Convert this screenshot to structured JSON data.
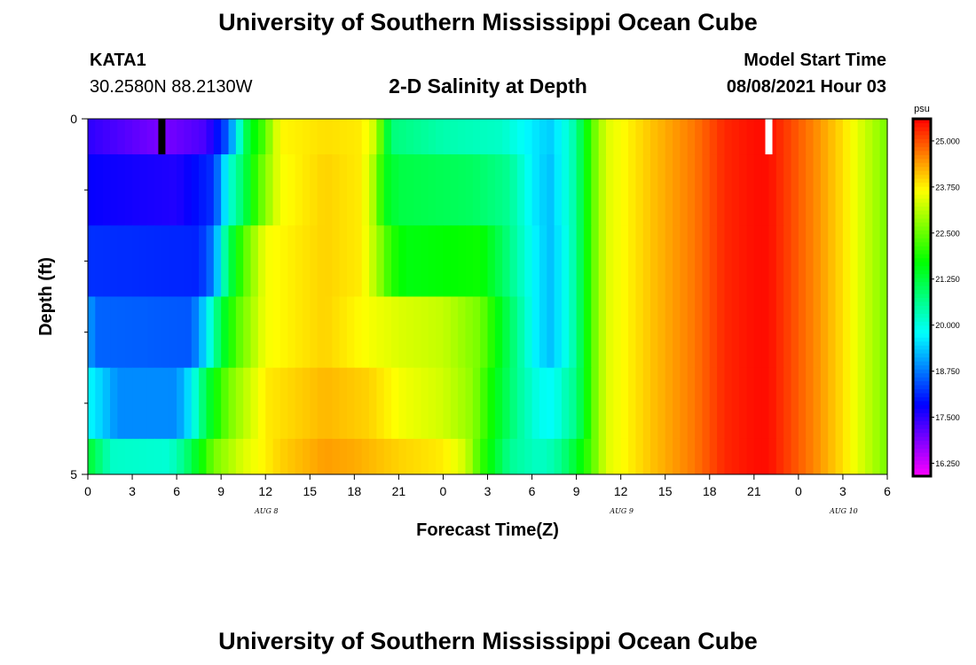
{
  "page": {
    "title_top": "University of Southern Mississippi Ocean Cube",
    "title_bottom": "University of Southern Mississippi Ocean Cube",
    "station_id": "KATA1",
    "station_coords": "30.2580N  88.2130W",
    "subtitle": "2-D Salinity at Depth",
    "model_start_label": "Model Start Time",
    "model_start_value": "08/08/2021 Hour 03"
  },
  "chart_data": {
    "type": "heatmap",
    "title": "2-D Salinity at Depth",
    "xlabel": "Forecast Time(Z)",
    "ylabel": "Depth (ft)",
    "x_hours_from_aug8_00z": [
      0,
      54
    ],
    "x_tick_labels": [
      "0",
      "3",
      "6",
      "9",
      "12",
      "15",
      "18",
      "21",
      "0",
      "3",
      "6",
      "9",
      "12",
      "15",
      "18",
      "21",
      "0",
      "3",
      "6"
    ],
    "day_labels": [
      {
        "label": "AUG 8",
        "hour": 12
      },
      {
        "label": "AUG 9",
        "hour": 36
      },
      {
        "label": "AUG 10",
        "hour": 51
      }
    ],
    "y_range_ft": [
      0,
      5
    ],
    "y_tick_labels": [
      "0",
      "5"
    ],
    "y_minor_ticks_ft": [
      1,
      2,
      3,
      4
    ],
    "colorbar": {
      "unit": "psu",
      "range": [
        15.9,
        25.6
      ],
      "tick_values": [
        16.25,
        17.5,
        18.75,
        20.0,
        21.25,
        22.5,
        23.75,
        25.0
      ],
      "tick_labels": [
        "16.250",
        "17.500",
        "18.750",
        "20.000",
        "21.250",
        "22.500",
        "23.750",
        "25.000"
      ]
    },
    "markers": [
      {
        "color": "#000000",
        "hour": 5.0,
        "depth_ft_top": 0,
        "depth_ft_bottom": 0.5
      },
      {
        "color": "#ffffff",
        "hour": 46.0,
        "depth_ft_top": 0,
        "depth_ft_bottom": 0.5
      }
    ],
    "rows": [
      {
        "depth_ft": [
          0.0,
          0.5
        ],
        "knots": [
          [
            0,
            17.5
          ],
          [
            5,
            16.9
          ],
          [
            8,
            17.3
          ],
          [
            9.5,
            18.6
          ],
          [
            10.8,
            21.3
          ],
          [
            11.8,
            22.2
          ],
          [
            13,
            23.7
          ],
          [
            16,
            23.9
          ],
          [
            18.5,
            23.8
          ],
          [
            19.5,
            23.2
          ],
          [
            20,
            21.8
          ],
          [
            20.5,
            20.8
          ],
          [
            24,
            20.4
          ],
          [
            28,
            20.2
          ],
          [
            30.2,
            19.6
          ],
          [
            31.2,
            19.4
          ],
          [
            32,
            19.8
          ],
          [
            32.8,
            20.4
          ],
          [
            33.5,
            21.4
          ],
          [
            34,
            22.3
          ],
          [
            35,
            23.4
          ],
          [
            38,
            24.1
          ],
          [
            41,
            24.7
          ],
          [
            43,
            25.3
          ],
          [
            45,
            25.5
          ],
          [
            46,
            25.5
          ],
          [
            47,
            25.2
          ],
          [
            49,
            24.6
          ],
          [
            51,
            23.9
          ],
          [
            54,
            22.6
          ]
        ]
      },
      {
        "depth_ft": [
          0.5,
          1.5
        ],
        "knots": [
          [
            0,
            17.8
          ],
          [
            6,
            17.6
          ],
          [
            8.5,
            18.2
          ],
          [
            9.5,
            20.0
          ],
          [
            10.5,
            21.0
          ],
          [
            11.5,
            22.3
          ],
          [
            13,
            23.6
          ],
          [
            16,
            24.0
          ],
          [
            18.5,
            23.8
          ],
          [
            19.5,
            22.8
          ],
          [
            20,
            21.6
          ],
          [
            21,
            21.2
          ],
          [
            26,
            21.0
          ],
          [
            28.5,
            20.6
          ],
          [
            30.2,
            19.6
          ],
          [
            31.2,
            19.3
          ],
          [
            32,
            19.8
          ],
          [
            32.8,
            20.4
          ],
          [
            33.5,
            21.4
          ],
          [
            34,
            22.3
          ],
          [
            35,
            23.4
          ],
          [
            38,
            24.1
          ],
          [
            41,
            24.7
          ],
          [
            43,
            25.3
          ],
          [
            45,
            25.5
          ],
          [
            46,
            25.5
          ],
          [
            47,
            25.2
          ],
          [
            49,
            24.6
          ],
          [
            51,
            23.9
          ],
          [
            54,
            22.6
          ]
        ]
      },
      {
        "depth_ft": [
          1.5,
          2.5
        ],
        "knots": [
          [
            0,
            18.2
          ],
          [
            7.5,
            18.1
          ],
          [
            8.5,
            18.8
          ],
          [
            9.5,
            21.0
          ],
          [
            10.5,
            22.3
          ],
          [
            12,
            23.6
          ],
          [
            16,
            24.0
          ],
          [
            18.5,
            23.8
          ],
          [
            19.5,
            23.0
          ],
          [
            20.5,
            22.0
          ],
          [
            21.5,
            21.6
          ],
          [
            26.5,
            21.8
          ],
          [
            28,
            21.0
          ],
          [
            30.2,
            19.7
          ],
          [
            31.2,
            19.3
          ],
          [
            32,
            19.7
          ],
          [
            32.8,
            20.4
          ],
          [
            33.5,
            21.4
          ],
          [
            34,
            22.3
          ],
          [
            35,
            23.4
          ],
          [
            38,
            24.1
          ],
          [
            41,
            24.7
          ],
          [
            43,
            25.3
          ],
          [
            45,
            25.5
          ],
          [
            46,
            25.5
          ],
          [
            47,
            25.2
          ],
          [
            49,
            24.6
          ],
          [
            51,
            23.9
          ],
          [
            54,
            22.6
          ]
        ]
      },
      {
        "depth_ft": [
          2.5,
          3.5
        ],
        "knots": [
          [
            0,
            19.2
          ],
          [
            0.5,
            18.6
          ],
          [
            7,
            18.5
          ],
          [
            8,
            19.6
          ],
          [
            9,
            21.2
          ],
          [
            10,
            22.3
          ],
          [
            12,
            23.6
          ],
          [
            16,
            24.0
          ],
          [
            19,
            23.6
          ],
          [
            21,
            23.4
          ],
          [
            24,
            23.2
          ],
          [
            26.5,
            22.6
          ],
          [
            28,
            21.4
          ],
          [
            30.2,
            19.7
          ],
          [
            31.2,
            19.3
          ],
          [
            32,
            19.7
          ],
          [
            32.8,
            20.4
          ],
          [
            33.5,
            21.4
          ],
          [
            34,
            22.3
          ],
          [
            35,
            23.4
          ],
          [
            38,
            24.1
          ],
          [
            41,
            24.7
          ],
          [
            43,
            25.3
          ],
          [
            45,
            25.5
          ],
          [
            46,
            25.5
          ],
          [
            47,
            25.2
          ],
          [
            49,
            24.6
          ],
          [
            51,
            23.9
          ],
          [
            54,
            22.6
          ]
        ]
      },
      {
        "depth_ft": [
          3.5,
          4.5
        ],
        "knots": [
          [
            0,
            19.8
          ],
          [
            1,
            19.4
          ],
          [
            2,
            18.9
          ],
          [
            6,
            18.9
          ],
          [
            7,
            19.7
          ],
          [
            8,
            21.2
          ],
          [
            9.5,
            22.6
          ],
          [
            12,
            23.8
          ],
          [
            16,
            24.2
          ],
          [
            19,
            24.0
          ],
          [
            21,
            23.6
          ],
          [
            24,
            23.3
          ],
          [
            26,
            22.8
          ],
          [
            27.5,
            21.6
          ],
          [
            29,
            20.6
          ],
          [
            30.5,
            19.9
          ],
          [
            31.5,
            19.8
          ],
          [
            32,
            20.2
          ],
          [
            32.8,
            20.6
          ],
          [
            33.5,
            21.4
          ],
          [
            34,
            22.3
          ],
          [
            35,
            23.4
          ],
          [
            38,
            24.1
          ],
          [
            41,
            24.7
          ],
          [
            43,
            25.3
          ],
          [
            45,
            25.5
          ],
          [
            46,
            25.5
          ],
          [
            47,
            25.2
          ],
          [
            49,
            24.6
          ],
          [
            51,
            23.9
          ],
          [
            54,
            22.6
          ]
        ]
      },
      {
        "depth_ft": [
          4.5,
          5.0
        ],
        "knots": [
          [
            0,
            21.4
          ],
          [
            0.8,
            20.8
          ],
          [
            1.6,
            20.2
          ],
          [
            5.5,
            20.1
          ],
          [
            6.5,
            20.7
          ],
          [
            7.5,
            21.6
          ],
          [
            8.5,
            22.6
          ],
          [
            10.5,
            23.4
          ],
          [
            13,
            24.0
          ],
          [
            16,
            24.4
          ],
          [
            18,
            24.3
          ],
          [
            21,
            24.0
          ],
          [
            24,
            23.8
          ],
          [
            25.5,
            23.3
          ],
          [
            26.5,
            22.2
          ],
          [
            27.5,
            21.4
          ],
          [
            28.5,
            20.6
          ],
          [
            30.5,
            20.2
          ],
          [
            31.5,
            20.4
          ],
          [
            32.5,
            21.0
          ],
          [
            33.2,
            21.6
          ],
          [
            34,
            22.3
          ],
          [
            35,
            23.4
          ],
          [
            38,
            24.1
          ],
          [
            41,
            24.7
          ],
          [
            43,
            25.3
          ],
          [
            45,
            25.5
          ],
          [
            46,
            25.5
          ],
          [
            47,
            25.2
          ],
          [
            49,
            24.6
          ],
          [
            51,
            23.9
          ],
          [
            54,
            22.6
          ]
        ]
      }
    ]
  }
}
